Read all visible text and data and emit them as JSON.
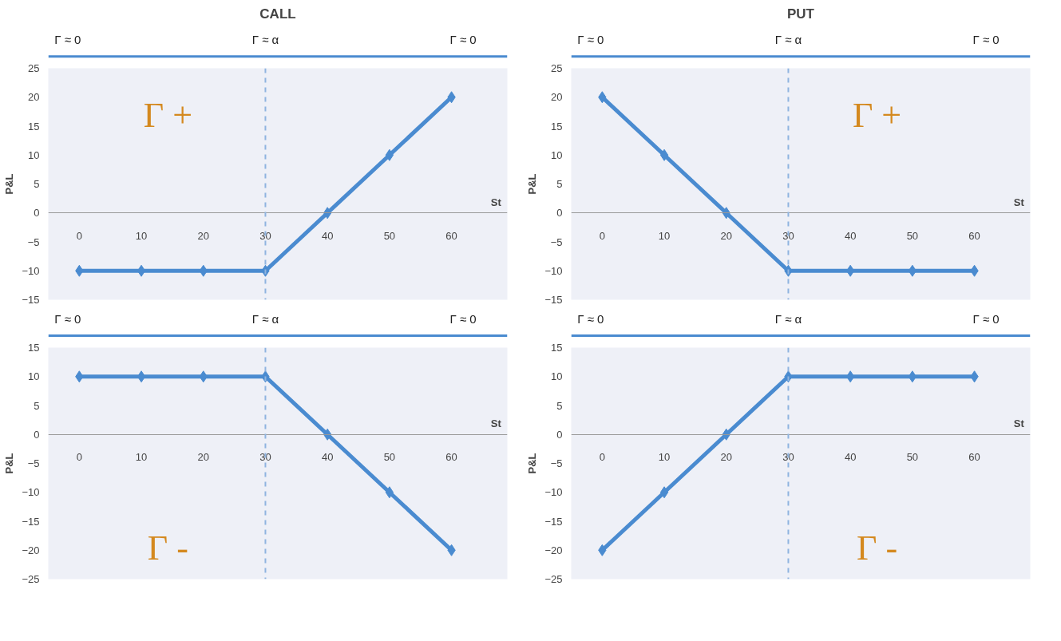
{
  "chart_data": [
    {
      "type": "line",
      "title": "CALL",
      "xlabel": "St",
      "ylabel": "P&L",
      "categories": [
        "0",
        "10",
        "20",
        "30",
        "40",
        "50",
        "60"
      ],
      "values": [
        -10,
        -10,
        -10,
        -10,
        0,
        10,
        20
      ],
      "color": "#4a8bd0",
      "marker": "diamond",
      "ylim": [
        -15,
        25
      ],
      "yticks": [
        -15,
        -10,
        -5,
        0,
        5,
        10,
        15,
        20,
        25
      ],
      "ref_lines": [
        {
          "axis": "x",
          "value": "30",
          "color": "#8fb4e0",
          "line_style": "dashed"
        }
      ],
      "annotations": [
        "Γ ≈ 0",
        "Γ ≈ α",
        "Γ ≈ 0",
        "Γ  +"
      ]
    },
    {
      "type": "line",
      "title": "PUT",
      "xlabel": "St",
      "ylabel": "P&L",
      "categories": [
        "0",
        "10",
        "20",
        "30",
        "40",
        "50",
        "60"
      ],
      "values": [
        20,
        10,
        0,
        -10,
        -10,
        -10,
        -10
      ],
      "color": "#4a8bd0",
      "marker": "diamond",
      "ylim": [
        -15,
        25
      ],
      "yticks": [
        -15,
        -10,
        -5,
        0,
        5,
        10,
        15,
        20,
        25
      ],
      "ref_lines": [
        {
          "axis": "x",
          "value": "30",
          "color": "#8fb4e0",
          "line_style": "dashed"
        }
      ],
      "annotations": [
        "Γ ≈ 0",
        "Γ ≈ α",
        "Γ ≈ 0",
        "Γ  +"
      ]
    },
    {
      "type": "line",
      "xlabel": "St",
      "ylabel": "P&L",
      "categories": [
        "0",
        "10",
        "20",
        "30",
        "40",
        "50",
        "60"
      ],
      "values": [
        10,
        10,
        10,
        10,
        0,
        -10,
        -20
      ],
      "color": "#4a8bd0",
      "marker": "diamond",
      "ylim": [
        -25,
        15
      ],
      "yticks": [
        -25,
        -20,
        -15,
        -10,
        -5,
        0,
        5,
        10,
        15
      ],
      "ref_lines": [
        {
          "axis": "x",
          "value": "30",
          "color": "#8fb4e0",
          "line_style": "dashed"
        }
      ],
      "annotations": [
        "Γ ≈ 0",
        "Γ ≈ α",
        "Γ ≈ 0",
        "Γ  -"
      ]
    },
    {
      "type": "line",
      "xlabel": "St",
      "ylabel": "P&L",
      "categories": [
        "0",
        "10",
        "20",
        "30",
        "40",
        "50",
        "60"
      ],
      "values": [
        -20,
        -10,
        0,
        10,
        10,
        10,
        10
      ],
      "color": "#4a8bd0",
      "marker": "diamond",
      "ylim": [
        -25,
        15
      ],
      "yticks": [
        -25,
        -20,
        -15,
        -10,
        -5,
        0,
        5,
        10,
        15
      ],
      "ref_lines": [
        {
          "axis": "x",
          "value": "30",
          "color": "#8fb4e0",
          "line_style": "dashed"
        }
      ],
      "annotations": [
        "Γ ≈ 0",
        "Γ ≈ α",
        "Γ ≈ 0",
        "Γ  -"
      ]
    }
  ]
}
